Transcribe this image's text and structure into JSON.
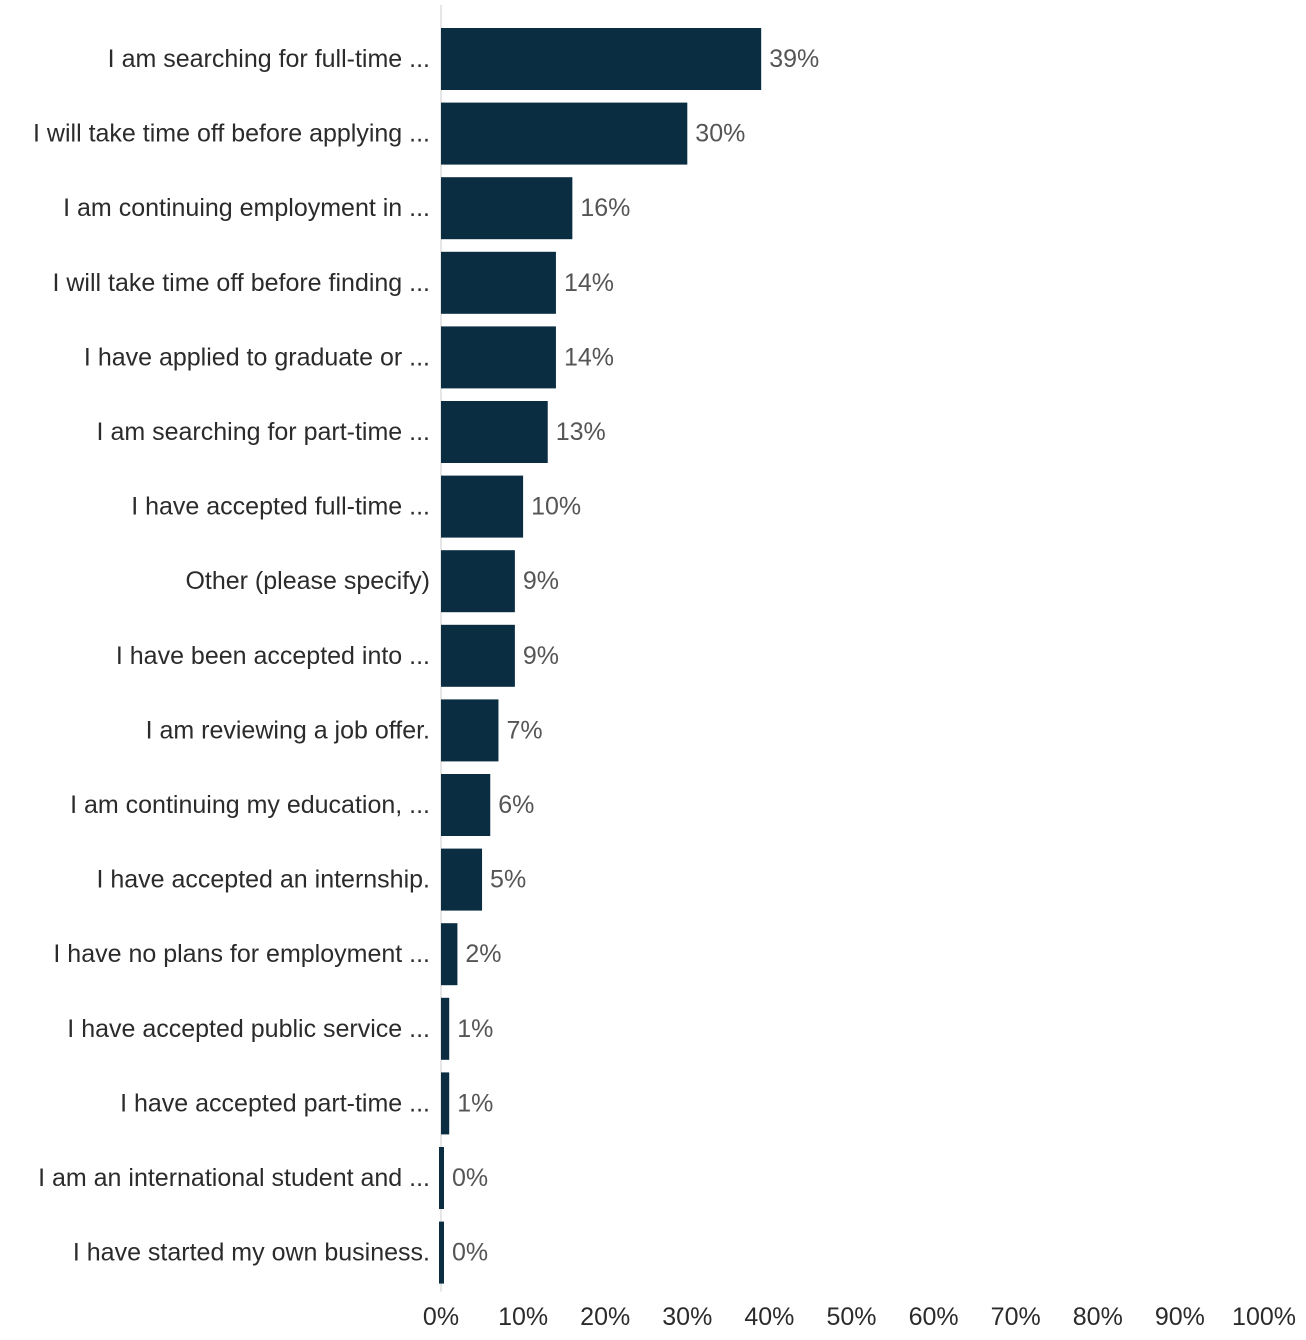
{
  "chart_data": {
    "type": "bar",
    "orientation": "horizontal",
    "categories": [
      "I am searching for full-time ...",
      "I will take time off before applying ...",
      "I am continuing employment in ...",
      "I will take time off before finding ...",
      "I have applied to graduate or ...",
      "I am searching for part-time ...",
      "I have accepted full-time ...",
      "Other (please specify)",
      "I have been accepted into ...",
      "I am reviewing a job offer.",
      "I am continuing my education, ...",
      "I have accepted an internship.",
      "I have no plans for employment ...",
      "I have accepted public service ...",
      "I have accepted part-time ...",
      "I am an international student and ...",
      "I have started my own business."
    ],
    "values": [
      39,
      30,
      16,
      14,
      14,
      13,
      10,
      9,
      9,
      7,
      6,
      5,
      2,
      1,
      1,
      0,
      0
    ],
    "value_labels": [
      "39%",
      "30%",
      "16%",
      "14%",
      "14%",
      "13%",
      "10%",
      "9%",
      "9%",
      "7%",
      "6%",
      "5%",
      "2%",
      "1%",
      "1%",
      "0%",
      "0%"
    ],
    "x_ticks": [
      "0%",
      "10%",
      "20%",
      "30%",
      "40%",
      "50%",
      "60%",
      "70%",
      "80%",
      "90%",
      "100%"
    ],
    "xlim": [
      0,
      100
    ],
    "grid": false,
    "legend": "none",
    "colors": {
      "bar": "#0b2d42",
      "axis": "#dddddd"
    }
  }
}
